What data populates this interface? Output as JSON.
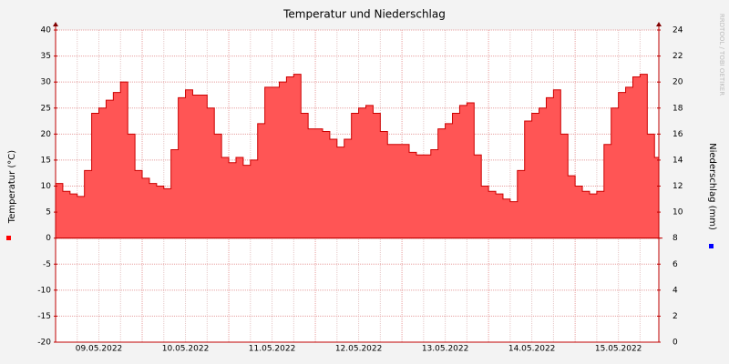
{
  "chart_data": {
    "type": "area",
    "title": "Temperatur und Niederschlag",
    "ylabel": "Temperatur (°C)",
    "ycolor": "#ff0000",
    "y2label": "Niederschlag (mm)",
    "y2color": "#0000ff",
    "watermark": "RRDTOOL / TOBI OETIKER",
    "categories": [
      null,
      null,
      null,
      null,
      null,
      null,
      "09.05.2022",
      null,
      null,
      null,
      null,
      null,
      null,
      null,
      null,
      null,
      null,
      null,
      "10.05.2022",
      null,
      null,
      null,
      null,
      null,
      null,
      null,
      null,
      null,
      null,
      null,
      "11.05.2022",
      null,
      null,
      null,
      null,
      null,
      null,
      null,
      null,
      null,
      null,
      null,
      "12.05.2022",
      null,
      null,
      null,
      null,
      null,
      null,
      null,
      null,
      null,
      null,
      null,
      "13.05.2022",
      null,
      null,
      null,
      null,
      null,
      null,
      null,
      null,
      null,
      null,
      null,
      "14.05.2022",
      null,
      null,
      null,
      null,
      null,
      null,
      null,
      null,
      null,
      null,
      null,
      "15.05.2022",
      null,
      null,
      null,
      null,
      null
    ],
    "series": [
      {
        "name": "Temperatur (°C)",
        "color": "#ff5555",
        "values": [
          10.5,
          9,
          8.5,
          8,
          13,
          24,
          25,
          26.5,
          28,
          30,
          20,
          13,
          11.5,
          10.5,
          10,
          9.5,
          17,
          27,
          28.5,
          27.5,
          27.5,
          25,
          20,
          15.5,
          14.5,
          15.5,
          14,
          15,
          22,
          29,
          29,
          30,
          31,
          31.5,
          24,
          21,
          21,
          20.5,
          19,
          17.5,
          19,
          24,
          25,
          25.5,
          24,
          20.5,
          18,
          18,
          18,
          16.5,
          16,
          16,
          17,
          21,
          22,
          24,
          25.5,
          26,
          16,
          10,
          9,
          8.5,
          7.5,
          7,
          13,
          22.5,
          24,
          25,
          27,
          28.5,
          20,
          12,
          10,
          9,
          8.5,
          9,
          18,
          25,
          28,
          29,
          31,
          31.5,
          20,
          15.5
        ]
      }
    ],
    "ylim": [
      -20,
      40
    ],
    "yticks": [
      -20,
      -15,
      -10,
      -5,
      0,
      5,
      10,
      15,
      20,
      25,
      30,
      35,
      40
    ],
    "y2lim": [
      0,
      24
    ],
    "y2ticks": [
      0,
      2,
      4,
      6,
      8,
      10,
      12,
      14,
      16,
      18,
      20,
      22,
      24
    ],
    "grid": true
  }
}
